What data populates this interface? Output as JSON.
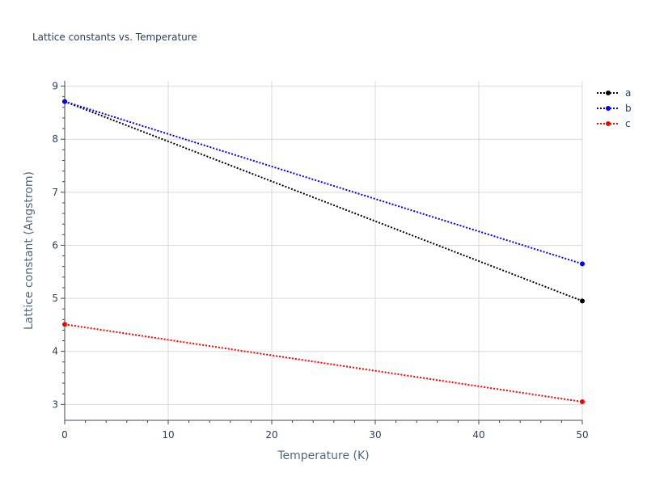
{
  "chart_data": {
    "type": "line",
    "title": "Lattice constants vs. Temperature",
    "xlabel": "Temperature (K)",
    "ylabel": "Lattice constant (Angstrom)",
    "xlim": [
      0,
      50
    ],
    "ylim": [
      2.7,
      9.1
    ],
    "x_ticks": [
      0,
      10,
      20,
      30,
      40,
      50
    ],
    "y_ticks": [
      3,
      4,
      5,
      6,
      7,
      8,
      9
    ],
    "grid": true,
    "legend_position": "top-right",
    "series": [
      {
        "name": "a",
        "color": "#000000",
        "x": [
          0,
          50
        ],
        "y": [
          8.71,
          4.95
        ]
      },
      {
        "name": "b",
        "color": "#0000ff",
        "x": [
          0,
          50
        ],
        "y": [
          8.71,
          5.65
        ]
      },
      {
        "name": "c",
        "color": "#ff0000",
        "x": [
          0,
          50
        ],
        "y": [
          4.51,
          3.05
        ]
      }
    ]
  }
}
